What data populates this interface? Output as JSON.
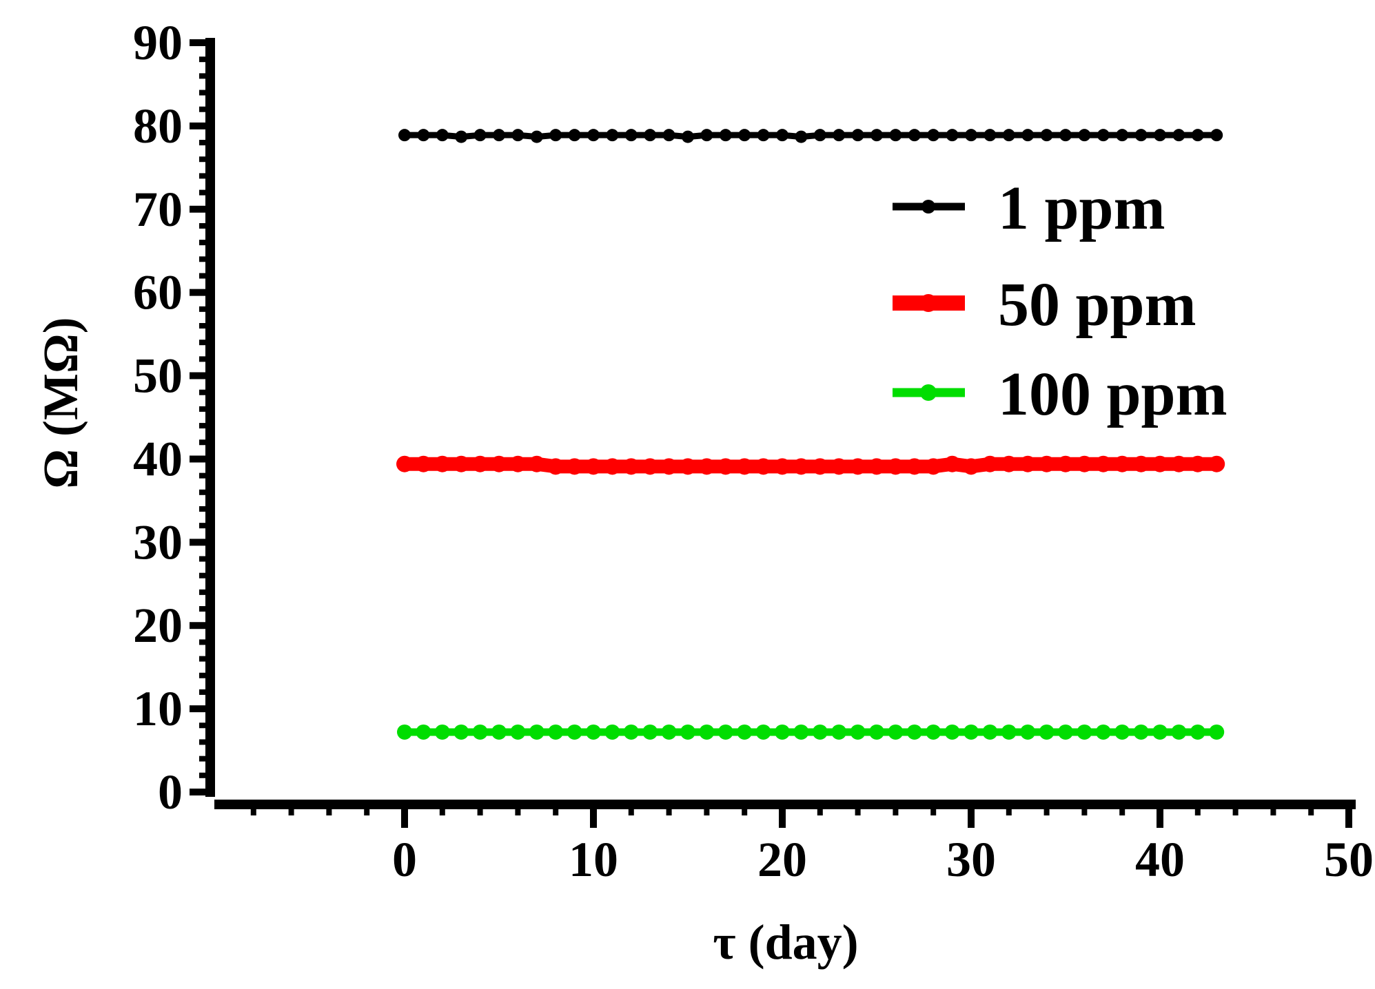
{
  "chart_data": {
    "type": "line",
    "title": "",
    "xlabel": "τ (day)",
    "ylabel": "Ω (MΩ)",
    "xlim": [
      -10,
      50
    ],
    "ylim": [
      0,
      90
    ],
    "x_ticks": [
      0,
      10,
      20,
      30,
      40,
      50
    ],
    "x_tick_labels": [
      "0",
      "10",
      "20",
      "30",
      "40",
      "50"
    ],
    "y_ticks": [
      0,
      10,
      20,
      30,
      40,
      50,
      60,
      70,
      80,
      90
    ],
    "y_tick_labels": [
      "0",
      "10",
      "20",
      "30",
      "40",
      "50",
      "60",
      "70",
      "80",
      "90"
    ],
    "grid": false,
    "legend_position": "top-right",
    "x": [
      0,
      1,
      2,
      3,
      4,
      5,
      6,
      7,
      8,
      9,
      10,
      11,
      12,
      13,
      14,
      15,
      16,
      17,
      18,
      19,
      20,
      21,
      22,
      23,
      24,
      25,
      26,
      27,
      28,
      29,
      30,
      31,
      32,
      33,
      34,
      35,
      36,
      37,
      38,
      39,
      40,
      41,
      42,
      43
    ],
    "series": [
      {
        "name": "1 ppm",
        "color": "#000000",
        "values": [
          78.9,
          78.9,
          78.9,
          78.7,
          78.9,
          78.9,
          78.9,
          78.7,
          78.9,
          78.9,
          78.9,
          78.9,
          78.9,
          78.9,
          78.9,
          78.7,
          78.9,
          78.9,
          78.9,
          78.9,
          78.9,
          78.7,
          78.9,
          78.9,
          78.9,
          78.9,
          78.9,
          78.9,
          78.9,
          78.9,
          78.9,
          78.9,
          78.9,
          78.9,
          78.9,
          78.9,
          78.9,
          78.9,
          78.9,
          78.9,
          78.9,
          78.9,
          78.9,
          78.9
        ]
      },
      {
        "name": "50 ppm",
        "color": "#ff0000",
        "values": [
          39.4,
          39.4,
          39.4,
          39.4,
          39.4,
          39.4,
          39.4,
          39.4,
          39.1,
          39.1,
          39.1,
          39.1,
          39.1,
          39.1,
          39.1,
          39.1,
          39.1,
          39.1,
          39.1,
          39.1,
          39.1,
          39.1,
          39.1,
          39.1,
          39.1,
          39.1,
          39.1,
          39.1,
          39.1,
          39.4,
          39.1,
          39.4,
          39.4,
          39.4,
          39.4,
          39.4,
          39.4,
          39.4,
          39.4,
          39.4,
          39.4,
          39.4,
          39.4,
          39.4
        ]
      },
      {
        "name": "100 ppm",
        "color": "#00dd00",
        "values": [
          7.2,
          7.2,
          7.2,
          7.2,
          7.2,
          7.2,
          7.2,
          7.2,
          7.2,
          7.2,
          7.2,
          7.2,
          7.2,
          7.2,
          7.2,
          7.2,
          7.2,
          7.2,
          7.2,
          7.2,
          7.2,
          7.2,
          7.2,
          7.2,
          7.2,
          7.2,
          7.2,
          7.2,
          7.2,
          7.2,
          7.2,
          7.2,
          7.2,
          7.2,
          7.2,
          7.2,
          7.2,
          7.2,
          7.2,
          7.2,
          7.2,
          7.2,
          7.2,
          7.2
        ]
      }
    ]
  }
}
